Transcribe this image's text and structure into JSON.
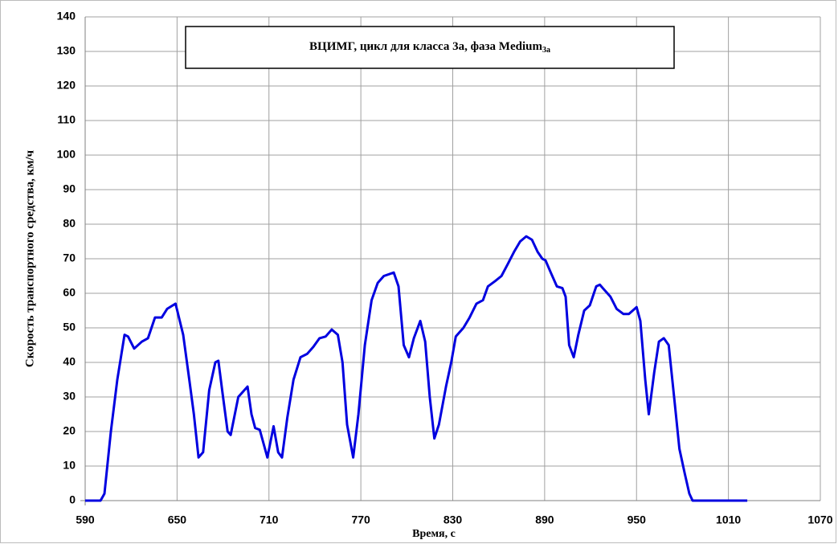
{
  "chart_data": {
    "type": "line",
    "title": "ВЦИМГ, цикл для класса 3а, фаза Medium",
    "title_subscript": "3a",
    "x_label": "Время, с",
    "y_label": "Скорость транспортного средства, км/ч",
    "xlim": [
      590,
      1070
    ],
    "xticks": [
      590,
      650,
      710,
      770,
      830,
      890,
      950,
      1010,
      1070
    ],
    "ylim": [
      0,
      140
    ],
    "yticks": [
      0,
      10,
      20,
      30,
      40,
      50,
      60,
      70,
      80,
      90,
      100,
      110,
      120,
      130,
      140
    ],
    "grid": true,
    "series": [
      {
        "color": "#0000e0",
        "x": [
          590,
          600,
          602.6,
          606.8,
          611,
          615.7,
          618,
          622,
          627,
          631,
          635.6,
          640,
          643.5,
          649,
          654,
          658,
          661,
          664,
          667,
          671,
          675,
          677,
          680,
          683,
          685,
          690,
          694,
          696,
          698.6,
          701,
          704,
          709,
          713,
          716,
          718.5,
          722,
          726,
          730.6,
          735,
          739,
          743,
          747,
          751,
          755,
          758,
          761,
          765,
          768.4,
          772.6,
          777,
          781,
          785,
          791.5,
          794.6,
          798,
          801.4,
          804.6,
          808.8,
          812,
          815,
          818,
          821,
          825.6,
          829,
          832,
          837,
          841,
          845.5,
          849.7,
          853,
          857.6,
          861.8,
          866,
          870,
          874,
          878,
          881.7,
          885.4,
          888.5,
          890.6,
          894,
          898,
          901.6,
          903.7,
          906,
          909,
          912,
          915.8,
          919.5,
          923.7,
          926,
          929,
          933,
          937,
          941.5,
          945,
          950,
          952.5,
          955.7,
          958,
          961.5,
          964.6,
          967.8,
          971,
          975,
          978,
          981.4,
          984.5,
          986.6,
          1022.3
        ],
        "values": [
          0,
          0,
          2,
          20,
          35,
          48,
          47.5,
          44,
          46,
          47,
          53,
          53,
          55.5,
          57,
          48,
          35,
          25,
          12.5,
          14,
          32,
          40,
          40.5,
          30,
          20,
          19,
          30,
          32,
          33,
          25,
          21,
          20.5,
          12.5,
          21.5,
          14,
          12.5,
          24,
          35,
          41.5,
          42.5,
          44.5,
          47,
          47.5,
          49.5,
          48,
          40,
          22,
          12.5,
          25,
          45,
          58,
          63,
          65,
          66,
          62,
          45,
          41.5,
          47,
          52,
          46,
          30,
          18,
          22,
          33,
          40,
          47.5,
          50,
          53,
          57,
          58,
          62,
          63.5,
          65,
          68.5,
          72,
          75,
          76.5,
          75.5,
          72,
          70,
          69.5,
          66,
          62,
          61.5,
          59,
          45,
          41.5,
          48,
          55,
          56.5,
          62,
          62.5,
          61,
          59,
          55.5,
          54,
          54,
          56,
          52,
          35,
          25,
          37,
          46,
          47,
          45,
          28,
          15,
          8,
          2,
          0,
          0
        ]
      }
    ]
  }
}
